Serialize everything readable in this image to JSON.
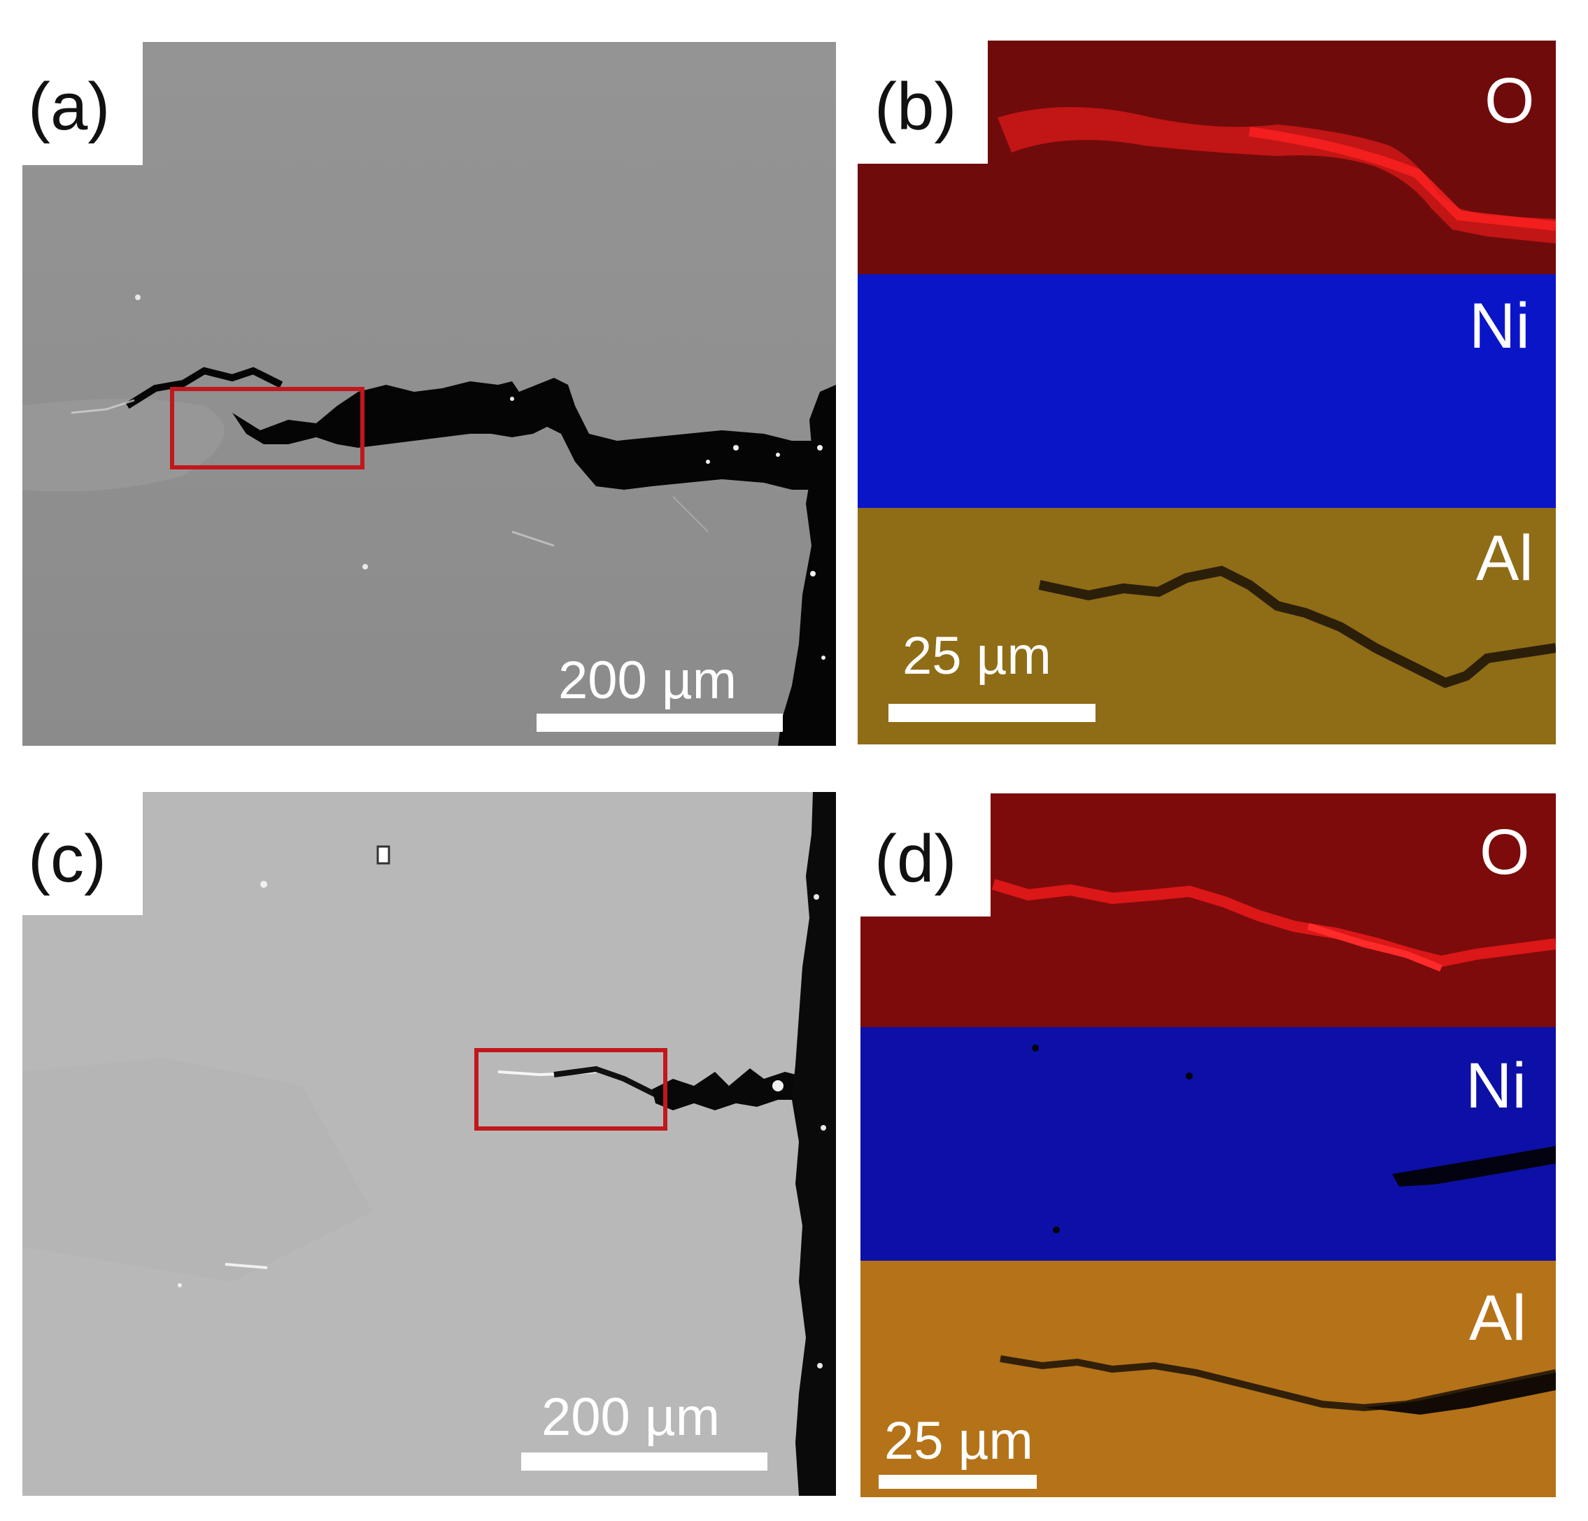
{
  "panels": {
    "a": {
      "label": "(a)",
      "scale_text": "200 µm"
    },
    "b": {
      "label": "(b)",
      "scale_text": "25 µm",
      "maps": [
        {
          "element": "O"
        },
        {
          "element": "Ni"
        },
        {
          "element": "Al"
        }
      ]
    },
    "c": {
      "label": "(c)",
      "scale_text": "200 µm"
    },
    "d": {
      "label": "(d)",
      "scale_text": "25 µm",
      "maps": [
        {
          "element": "O"
        },
        {
          "element": "Ni"
        },
        {
          "element": "Al"
        }
      ]
    }
  },
  "colors": {
    "sem_a": "#8f8f8f",
    "sem_c": "#b7b7b7",
    "crack": "#050505",
    "roi": "#c0181c",
    "O_map": "#7a0a0a",
    "Ni_map": "#0a14c4",
    "Al_map_b": "#9a7418",
    "Al_map_d": "#b87418"
  }
}
